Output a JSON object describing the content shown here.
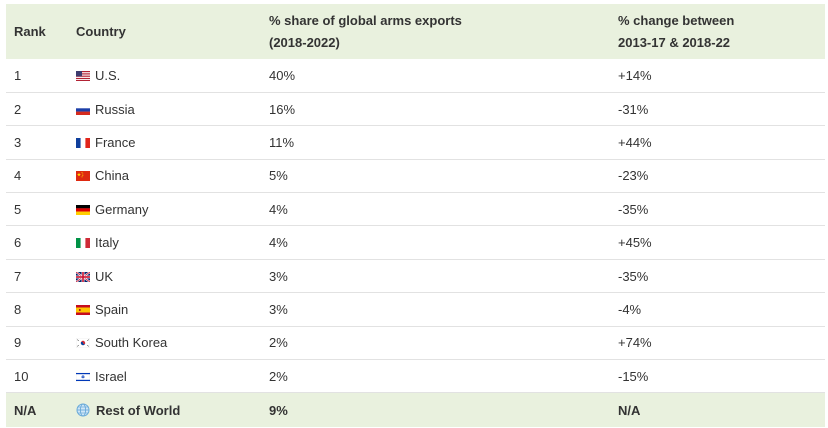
{
  "header": {
    "rank": "Rank",
    "country": "Country",
    "share_line1": "% share of global arms exports",
    "share_line2": "(2018-2022)",
    "change_line1": "% change between",
    "change_line2": "2013-17 & 2018-22"
  },
  "rows": [
    {
      "rank": "1",
      "flag": "us-flag-icon",
      "country": "U.S.",
      "share": "40%",
      "change": "+14%"
    },
    {
      "rank": "2",
      "flag": "russia-flag-icon",
      "country": "Russia",
      "share": "16%",
      "change": "-31%"
    },
    {
      "rank": "3",
      "flag": "france-flag-icon",
      "country": "France",
      "share": "11%",
      "change": "+44%"
    },
    {
      "rank": "4",
      "flag": "china-flag-icon",
      "country": "China",
      "share": "5%",
      "change": "-23%"
    },
    {
      "rank": "5",
      "flag": "germany-flag-icon",
      "country": "Germany",
      "share": "4%",
      "change": "-35%"
    },
    {
      "rank": "6",
      "flag": "italy-flag-icon",
      "country": "Italy",
      "share": "4%",
      "change": "+45%"
    },
    {
      "rank": "7",
      "flag": "uk-flag-icon",
      "country": "UK",
      "share": "3%",
      "change": "-35%"
    },
    {
      "rank": "8",
      "flag": "spain-flag-icon",
      "country": "Spain",
      "share": "3%",
      "change": "-4%"
    },
    {
      "rank": "9",
      "flag": "south-korea-flag-icon",
      "country": "South Korea",
      "share": "2%",
      "change": "+74%"
    },
    {
      "rank": "10",
      "flag": "israel-flag-icon",
      "country": "Israel",
      "share": "2%",
      "change": "-15%"
    }
  ],
  "total": {
    "rank": "N/A",
    "icon": "globe-icon",
    "country": "Rest of World",
    "share": "9%",
    "change": "N/A"
  },
  "colors": {
    "header_bg": "#e9f1de",
    "row_border": "#e2e2e2",
    "text": "#333333"
  }
}
